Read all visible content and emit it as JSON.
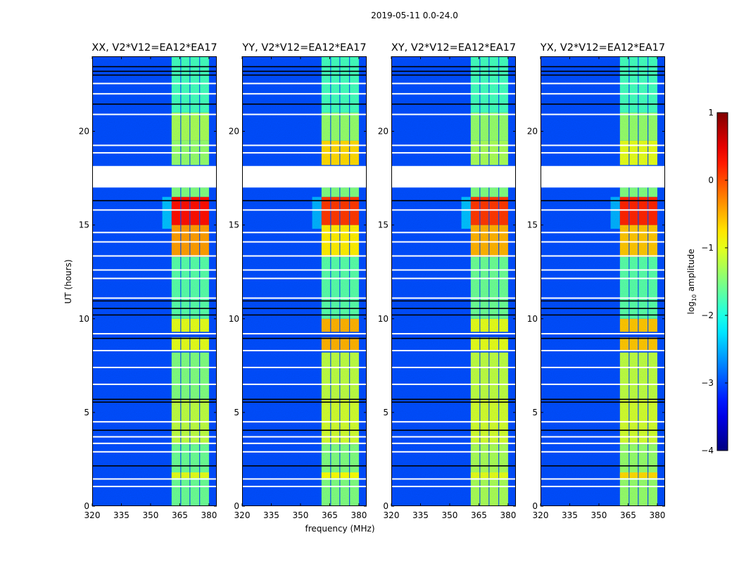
{
  "chart_data": {
    "type": "heatmap",
    "suptitle": "2019-05-11 0.0-24.0",
    "xlabel": "frequency (MHz)",
    "ylabel": "UT (hours)",
    "xlim": [
      320,
      384
    ],
    "ylim": [
      0,
      24
    ],
    "xticks": [
      320,
      335,
      350,
      365,
      380
    ],
    "yticks": [
      0,
      5,
      10,
      15,
      20
    ],
    "background_level": -3.0,
    "band_columns_mhz": [
      [
        360.8,
        365.3
      ],
      [
        365.7,
        370.0
      ],
      [
        370.4,
        375.0
      ],
      [
        375.4,
        380.0
      ]
    ],
    "flagged_interval_hours": [
      17.0,
      18.15
    ],
    "flagged_lines_hours": [
      22.55,
      22.0,
      20.9,
      19.25,
      18.85,
      15.8,
      14.6,
      14.1,
      13.35,
      12.6,
      12.15,
      11.1,
      9.2,
      8.3,
      7.4,
      6.5,
      4.5,
      3.7,
      3.35,
      2.9,
      1.45,
      1.05
    ],
    "dark_lines_hours": [
      23.45,
      23.2,
      23.0,
      21.45,
      16.3,
      10.95,
      10.55,
      10.2,
      8.95,
      5.7,
      5.55,
      4.05,
      2.15
    ],
    "panels": [
      {
        "title": "XX, V2*V12=EA12*EA17",
        "band_segments": [
          [
            0,
            3.3,
            -1.6
          ],
          [
            1.5,
            1.8,
            -1.0
          ],
          [
            3.3,
            5.7,
            -1.2
          ],
          [
            5.7,
            8.2,
            -1.5
          ],
          [
            8.3,
            9.0,
            -1.0
          ],
          [
            9.3,
            10.0,
            -1.0
          ],
          [
            10.0,
            13.3,
            -1.7
          ],
          [
            13.3,
            15.0,
            -0.4
          ],
          [
            15.0,
            16.5,
            0.3
          ],
          [
            16.5,
            17.0,
            -1.5
          ],
          [
            18.2,
            19.5,
            -1.4
          ],
          [
            19.5,
            21.0,
            -1.3
          ],
          [
            21.0,
            24.0,
            -1.8
          ]
        ],
        "wing_segments": [
          [
            14.8,
            16.5,
            -2.2
          ]
        ]
      },
      {
        "title": "YY, V2*V12=EA12*EA17",
        "band_segments": [
          [
            0,
            3.3,
            -1.5
          ],
          [
            1.5,
            1.8,
            -0.9
          ],
          [
            3.3,
            5.7,
            -1.1
          ],
          [
            5.7,
            8.2,
            -1.2
          ],
          [
            8.3,
            9.0,
            -0.5
          ],
          [
            9.3,
            10.0,
            -0.5
          ],
          [
            10.0,
            13.3,
            -1.7
          ],
          [
            13.3,
            15.0,
            -0.8
          ],
          [
            15.0,
            16.5,
            0.1
          ],
          [
            16.5,
            17.0,
            -1.5
          ],
          [
            18.2,
            19.5,
            -0.7
          ],
          [
            19.5,
            21.0,
            -1.4
          ],
          [
            21.0,
            24.0,
            -1.8
          ]
        ],
        "wing_segments": [
          [
            14.8,
            16.5,
            -2.3
          ]
        ]
      },
      {
        "title": "XY, V2*V12=EA12*EA17",
        "band_segments": [
          [
            0,
            3.3,
            -1.3
          ],
          [
            1.5,
            1.8,
            -1.0
          ],
          [
            3.3,
            5.7,
            -1.1
          ],
          [
            5.7,
            8.2,
            -1.2
          ],
          [
            8.3,
            9.0,
            -1.0
          ],
          [
            9.3,
            10.0,
            -1.0
          ],
          [
            10.0,
            13.3,
            -1.6
          ],
          [
            13.3,
            15.0,
            -0.5
          ],
          [
            15.0,
            16.5,
            0.1
          ],
          [
            16.5,
            17.0,
            -1.5
          ],
          [
            18.2,
            19.5,
            -1.3
          ],
          [
            19.5,
            21.0,
            -1.4
          ],
          [
            21.0,
            24.0,
            -1.8
          ]
        ],
        "wing_segments": [
          [
            14.8,
            16.5,
            -2.2
          ]
        ]
      },
      {
        "title": "YX, V2*V12=EA12*EA17",
        "band_segments": [
          [
            0,
            3.3,
            -1.4
          ],
          [
            1.5,
            1.8,
            -0.7
          ],
          [
            3.3,
            5.7,
            -1.1
          ],
          [
            5.7,
            8.2,
            -1.2
          ],
          [
            8.3,
            9.0,
            -0.6
          ],
          [
            9.3,
            10.0,
            -0.6
          ],
          [
            10.0,
            13.3,
            -1.7
          ],
          [
            13.3,
            15.0,
            -0.6
          ],
          [
            15.0,
            16.5,
            0.2
          ],
          [
            16.5,
            17.0,
            -1.5
          ],
          [
            18.2,
            19.5,
            -1.0
          ],
          [
            19.5,
            21.0,
            -1.4
          ],
          [
            21.0,
            24.0,
            -1.8
          ]
        ],
        "wing_segments": [
          [
            14.8,
            16.5,
            -2.3
          ]
        ]
      }
    ],
    "colorbar": {
      "label": "log10 amplitude",
      "label_main": "log",
      "label_sub": "10",
      "label_rest": " amplitude",
      "range": [
        -4,
        1
      ],
      "ticks": [
        1,
        0,
        -1,
        -2,
        -3,
        -4
      ],
      "tick_labels": [
        "1",
        "0",
        "−1",
        "−2",
        "−3",
        "−4"
      ],
      "colormap": "jet"
    }
  }
}
